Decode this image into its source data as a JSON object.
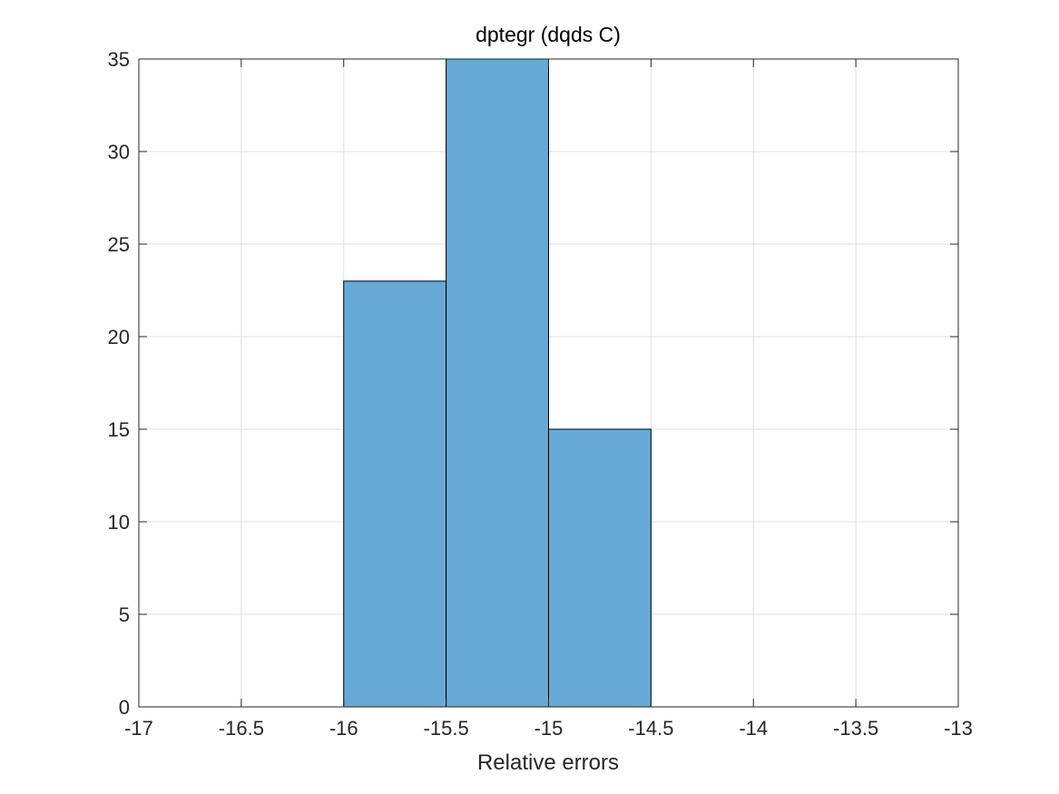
{
  "chart_data": {
    "type": "bar",
    "subtype": "histogram",
    "title": "dptegr (dqds C)",
    "xlabel": "Relative errors",
    "ylabel": "",
    "xlim": [
      -17,
      -13
    ],
    "ylim": [
      0,
      35
    ],
    "xticks": [
      "-17",
      "-16.5",
      "-16",
      "-15.5",
      "-15",
      "-14.5",
      "-14",
      "-13.5",
      "-13"
    ],
    "yticks": [
      "0",
      "5",
      "10",
      "15",
      "20",
      "25",
      "30",
      "35"
    ],
    "bins": [
      {
        "x0": -16,
        "x1": -15.5,
        "count": 23
      },
      {
        "x0": -15.5,
        "x1": -15,
        "count": 35
      },
      {
        "x0": -15,
        "x1": -14.5,
        "count": 15
      }
    ],
    "grid": true,
    "bar_color": "#66A9D7",
    "edge_color": "#000000"
  }
}
